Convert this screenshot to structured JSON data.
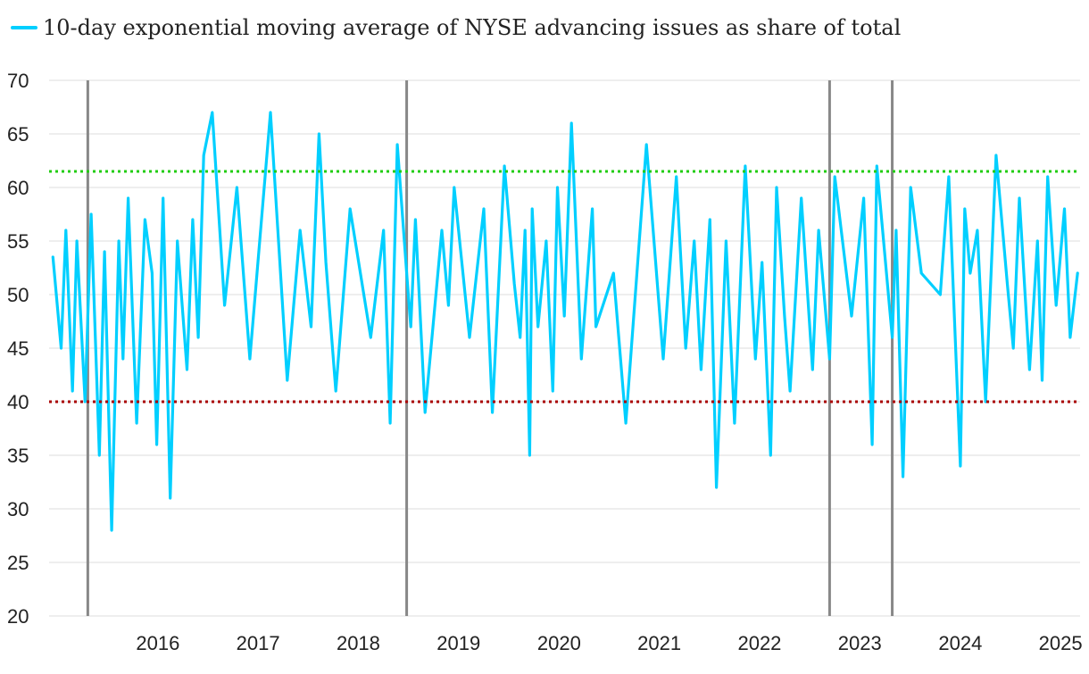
{
  "chart_data": {
    "type": "line",
    "title": "",
    "xlabel": "",
    "ylabel": "",
    "ylim": [
      20,
      70
    ],
    "y_ticks": [
      20,
      25,
      30,
      35,
      40,
      45,
      50,
      55,
      60,
      65,
      70
    ],
    "x_ticks": [
      "2016",
      "2017",
      "2018",
      "2019",
      "2020",
      "2021",
      "2022",
      "2023",
      "2024",
      "2025"
    ],
    "xlim": [
      "2015-06-01",
      "2025-09-10"
    ],
    "grid": "horizontal",
    "legend_position": "top-left",
    "series": [
      {
        "name": "10-day exponential moving average of NYSE advancing issues as share of total",
        "color": "#00CFFF",
        "x": [
          "2015-06-15",
          "2015-07-15",
          "2015-08-01",
          "2015-08-25",
          "2015-09-10",
          "2015-10-10",
          "2015-11-01",
          "2015-12-01",
          "2015-12-20",
          "2016-01-15",
          "2016-02-10",
          "2016-02-25",
          "2016-03-15",
          "2016-04-15",
          "2016-05-15",
          "2016-06-10",
          "2016-06-27",
          "2016-07-20",
          "2016-08-15",
          "2016-09-10",
          "2016-10-15",
          "2016-11-05",
          "2016-11-25",
          "2016-12-15",
          "2017-01-15",
          "2017-03-01",
          "2017-04-15",
          "2017-06-01",
          "2017-08-15",
          "2017-10-15",
          "2017-12-01",
          "2018-01-10",
          "2018-02-08",
          "2018-03-05",
          "2018-04-10",
          "2018-06-01",
          "2018-08-15",
          "2018-10-01",
          "2018-10-25",
          "2018-11-20",
          "2018-12-24",
          "2019-01-08",
          "2019-01-25",
          "2019-03-01",
          "2019-05-01",
          "2019-05-25",
          "2019-06-15",
          "2019-08-10",
          "2019-10-01",
          "2019-11-01",
          "2019-12-15",
          "2020-01-20",
          "2020-02-10",
          "2020-02-28",
          "2020-03-16",
          "2020-03-25",
          "2020-04-15",
          "2020-05-15",
          "2020-06-08",
          "2020-06-25",
          "2020-07-20",
          "2020-08-15",
          "2020-09-20",
          "2020-10-30",
          "2020-11-12",
          "2021-01-15",
          "2021-03-01",
          "2021-05-15",
          "2021-07-15",
          "2021-09-01",
          "2021-10-05",
          "2021-11-05",
          "2021-11-30",
          "2022-01-01",
          "2022-01-25",
          "2022-03-01",
          "2022-04-01",
          "2022-05-10",
          "2022-06-16",
          "2022-07-10",
          "2022-08-10",
          "2022-09-01",
          "2022-09-30",
          "2022-10-20",
          "2022-11-30",
          "2023-01-10",
          "2023-02-01",
          "2023-03-13",
          "2023-04-01",
          "2023-06-01",
          "2023-07-15",
          "2023-08-15",
          "2023-09-01",
          "2023-10-27",
          "2023-11-10",
          "2023-12-05",
          "2024-01-02",
          "2024-02-10",
          "2024-04-19",
          "2024-05-20",
          "2024-07-01",
          "2024-07-17",
          "2024-08-06",
          "2024-09-01",
          "2024-10-01",
          "2024-11-08",
          "2024-12-19",
          "2025-01-10",
          "2025-02-01",
          "2025-03-10",
          "2025-04-08",
          "2025-04-25",
          "2025-05-15",
          "2025-06-15",
          "2025-07-15",
          "2025-08-05",
          "2025-09-01"
        ],
        "y": [
          53.5,
          45,
          56,
          41,
          55,
          40,
          57.5,
          35,
          54,
          28,
          55,
          44,
          59,
          38,
          57,
          52,
          36,
          59,
          31,
          55,
          43,
          57,
          46,
          63,
          67,
          49,
          60,
          44,
          67,
          42,
          56,
          47,
          65,
          53,
          41,
          58,
          46,
          56,
          38,
          64,
          52,
          47,
          57,
          39,
          56,
          49,
          60,
          46,
          58,
          39,
          62,
          51,
          46,
          56,
          35,
          58,
          47,
          55,
          41,
          60,
          48,
          66,
          44,
          58,
          47,
          52,
          38,
          64,
          44,
          61,
          45,
          55,
          43,
          57,
          32,
          55,
          38,
          62,
          44,
          53,
          35,
          60,
          48,
          41,
          59,
          43,
          56,
          44,
          61,
          48,
          59,
          36,
          62,
          46,
          56,
          33,
          60,
          52,
          50,
          61,
          34,
          58,
          52,
          56,
          40,
          63,
          51,
          45,
          59,
          43,
          55,
          42,
          61,
          49,
          58,
          46,
          52
        ]
      }
    ],
    "reference_lines": [
      {
        "y": 61.5,
        "color": "#22CC11",
        "style": "dotted"
      },
      {
        "y": 40,
        "color": "#AA0000",
        "style": "dotted"
      }
    ],
    "vertical_markers": [
      {
        "x": "2015-10-20",
        "color": "#888888"
      },
      {
        "x": "2018-12-24",
        "color": "#888888"
      },
      {
        "x": "2023-03-13",
        "color": "#888888"
      },
      {
        "x": "2023-10-27",
        "color": "#888888"
      }
    ]
  }
}
